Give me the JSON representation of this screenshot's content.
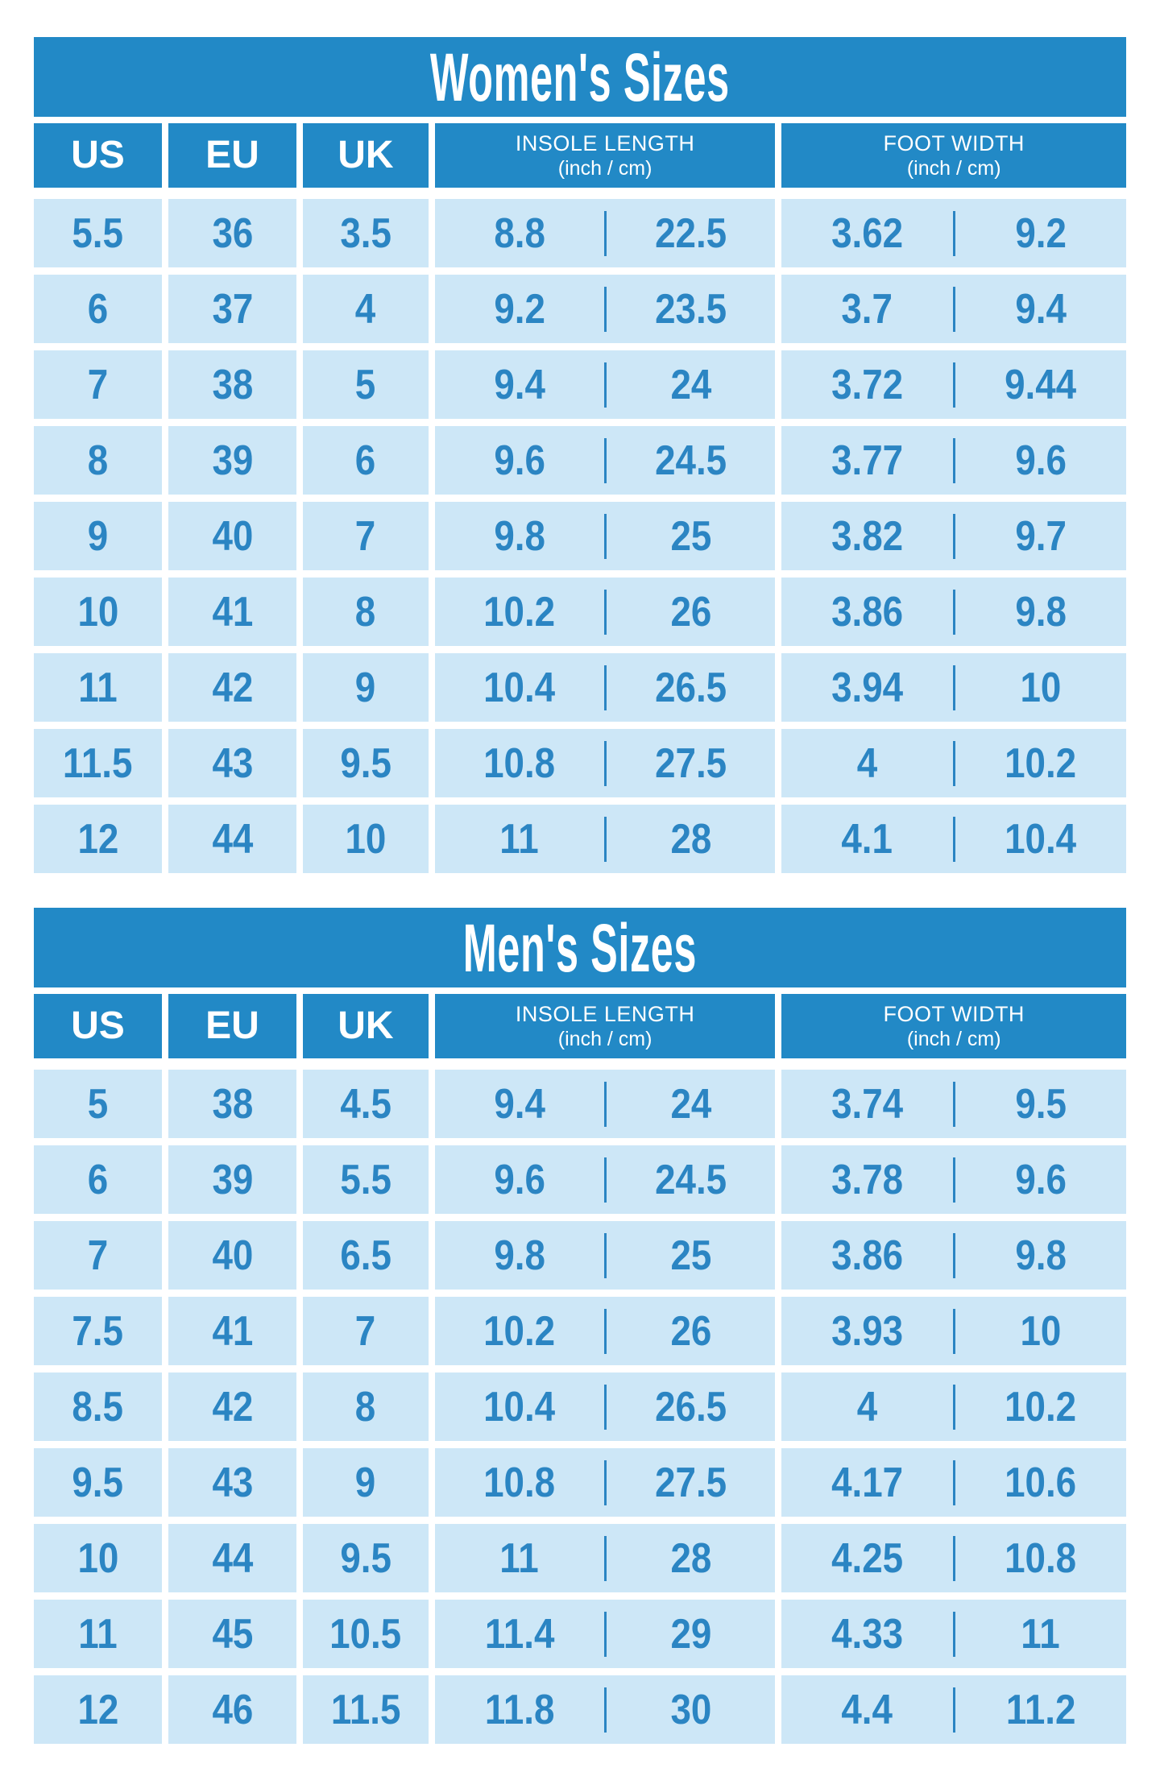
{
  "colors": {
    "header_blue": "#2289c6",
    "cell_light_blue": "#cde7f7",
    "value_text_blue": "#2b85c3",
    "background": "#ffffff"
  },
  "chart_data": [
    {
      "type": "table",
      "title": "Women's Sizes",
      "columns": [
        {
          "label": "US"
        },
        {
          "label": "EU"
        },
        {
          "label": "UK"
        },
        {
          "label": "INSOLE LENGTH",
          "sub": "(inch / cm)"
        },
        {
          "label": "FOOT WIDTH",
          "sub": "(inch / cm)"
        }
      ],
      "rows": [
        [
          "5.5",
          "36",
          "3.5",
          "8.8",
          "22.5",
          "3.62",
          "9.2"
        ],
        [
          "6",
          "37",
          "4",
          "9.2",
          "23.5",
          "3.7",
          "9.4"
        ],
        [
          "7",
          "38",
          "5",
          "9.4",
          "24",
          "3.72",
          "9.44"
        ],
        [
          "8",
          "39",
          "6",
          "9.6",
          "24.5",
          "3.77",
          "9.6"
        ],
        [
          "9",
          "40",
          "7",
          "9.8",
          "25",
          "3.82",
          "9.7"
        ],
        [
          "10",
          "41",
          "8",
          "10.2",
          "26",
          "3.86",
          "9.8"
        ],
        [
          "11",
          "42",
          "9",
          "10.4",
          "26.5",
          "3.94",
          "10"
        ],
        [
          "11.5",
          "43",
          "9.5",
          "10.8",
          "27.5",
          "4",
          "10.2"
        ],
        [
          "12",
          "44",
          "10",
          "11",
          "28",
          "4.1",
          "10.4"
        ]
      ]
    },
    {
      "type": "table",
      "title": "Men's Sizes",
      "columns": [
        {
          "label": "US"
        },
        {
          "label": "EU"
        },
        {
          "label": "UK"
        },
        {
          "label": "INSOLE LENGTH",
          "sub": "(inch / cm)"
        },
        {
          "label": "FOOT WIDTH",
          "sub": "(inch / cm)"
        }
      ],
      "rows": [
        [
          "5",
          "38",
          "4.5",
          "9.4",
          "24",
          "3.74",
          "9.5"
        ],
        [
          "6",
          "39",
          "5.5",
          "9.6",
          "24.5",
          "3.78",
          "9.6"
        ],
        [
          "7",
          "40",
          "6.5",
          "9.8",
          "25",
          "3.86",
          "9.8"
        ],
        [
          "7.5",
          "41",
          "7",
          "10.2",
          "26",
          "3.93",
          "10"
        ],
        [
          "8.5",
          "42",
          "8",
          "10.4",
          "26.5",
          "4",
          "10.2"
        ],
        [
          "9.5",
          "43",
          "9",
          "10.8",
          "27.5",
          "4.17",
          "10.6"
        ],
        [
          "10",
          "44",
          "9.5",
          "11",
          "28",
          "4.25",
          "10.8"
        ],
        [
          "11",
          "45",
          "10.5",
          "11.4",
          "29",
          "4.33",
          "11"
        ],
        [
          "12",
          "46",
          "11.5",
          "11.8",
          "30",
          "4.4",
          "11.2"
        ]
      ]
    }
  ]
}
